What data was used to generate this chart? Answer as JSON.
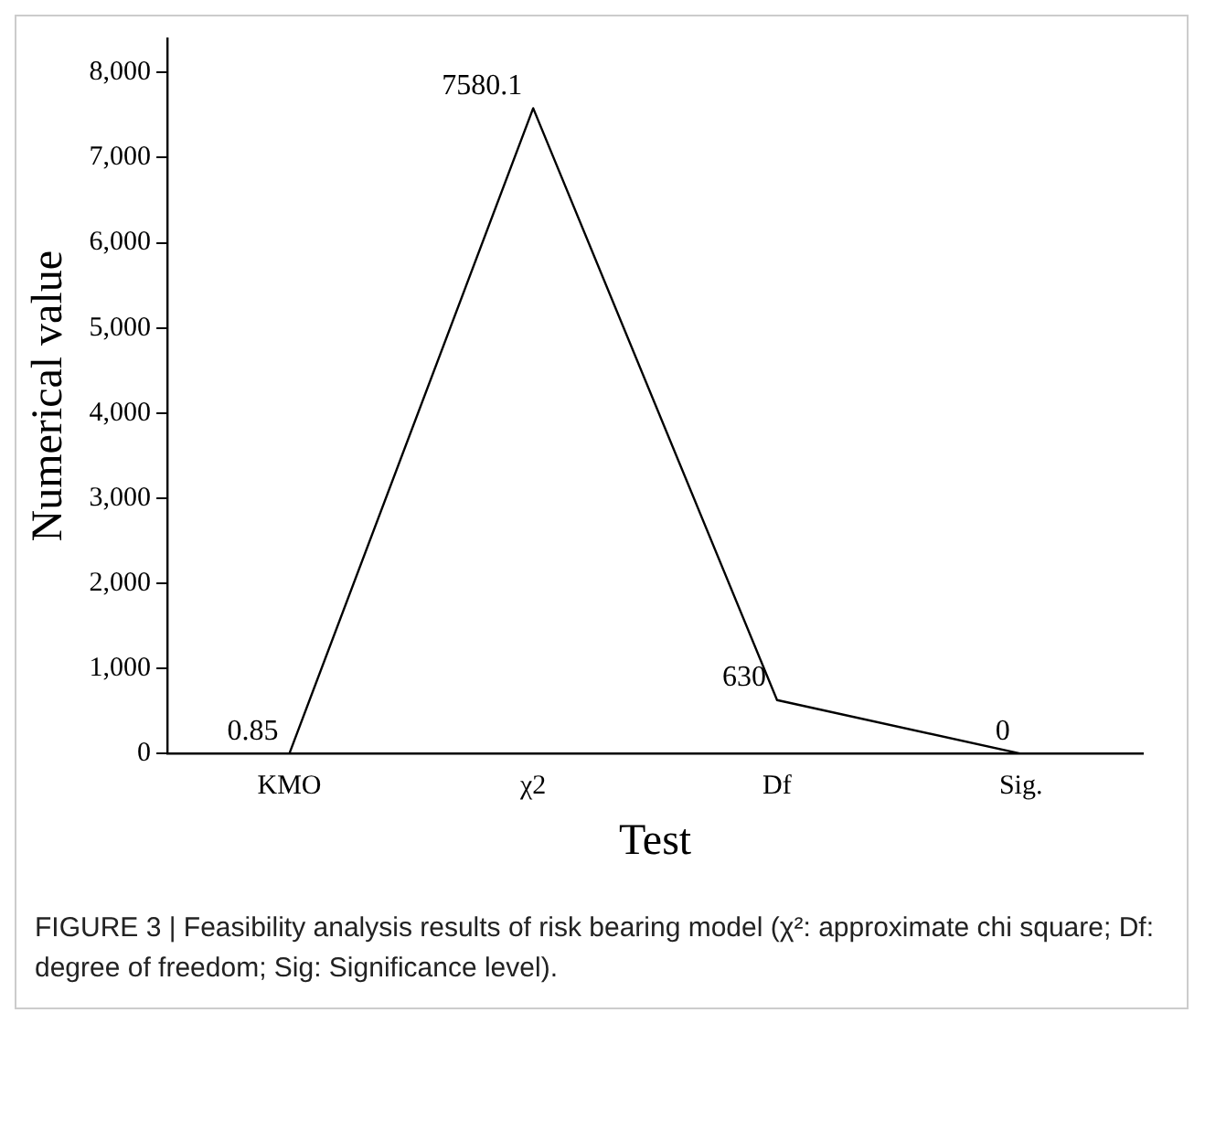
{
  "chart_data": {
    "type": "line",
    "xlabel": "Test",
    "ylabel": "Numerical value",
    "categories": [
      "KMO",
      "χ2",
      "Df",
      "Sig."
    ],
    "series": [
      {
        "color": "#000000",
        "values": [
          0.85,
          7580.1,
          630,
          0
        ]
      }
    ],
    "ylim": [
      0,
      8400
    ],
    "yticks": [
      0,
      {
        "value": 1000,
        "label": "1,000"
      },
      {
        "value": 2000,
        "label": "2,000"
      },
      {
        "value": 3000,
        "label": "3,000"
      },
      {
        "value": 4000,
        "label": "4,000"
      },
      {
        "value": 5000,
        "label": "5,000"
      },
      {
        "value": 6000,
        "label": "6,000"
      },
      {
        "value": 7000,
        "label": "7,000"
      },
      {
        "value": 8000,
        "label": "8,000"
      }
    ],
    "data_labels": true,
    "grid": false,
    "legend": false,
    "marker": "none",
    "line_style": "solid",
    "annotations": [
      "FIGURE 3 | Feasibility analysis results of risk bearing model (χ²: approximate chi square; Df: degree of freedom; Sig: Significance level)."
    ]
  }
}
